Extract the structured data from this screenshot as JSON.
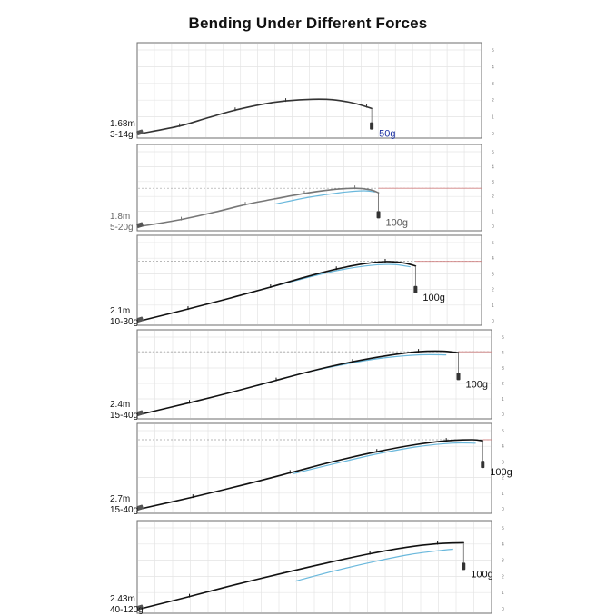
{
  "chart_data": {
    "type": "line",
    "title": "Bending Under Different Forces",
    "y_tick_labels": [
      "0",
      "1",
      "2",
      "3",
      "4",
      "5"
    ],
    "panels": [
      {
        "length": "1.68m",
        "power": "3-14g",
        "weight": "50g",
        "weight_color": "#1a2fa0",
        "label_color": "#111111",
        "rod_color": "#333333",
        "rod": [
          [
            0,
            0
          ],
          [
            2.3,
            0.45
          ],
          [
            4.0,
            0.95
          ],
          [
            5.6,
            1.4
          ],
          [
            7.2,
            1.75
          ],
          [
            8.6,
            1.95
          ],
          [
            10.2,
            2.05
          ],
          [
            11.4,
            2.02
          ],
          [
            12.5,
            1.85
          ],
          [
            13.4,
            1.6
          ],
          [
            13.7,
            1.5
          ]
        ],
        "reference": null,
        "baseline_y": null
      },
      {
        "length": "1.8m",
        "power": "5-20g",
        "weight": "100g",
        "weight_color": "#555555",
        "label_color": "#666666",
        "rod_color": "#777777",
        "rod": [
          [
            0,
            0
          ],
          [
            2.4,
            0.45
          ],
          [
            4.4,
            0.95
          ],
          [
            6.2,
            1.45
          ],
          [
            8.0,
            1.85
          ],
          [
            9.7,
            2.2
          ],
          [
            11.3,
            2.45
          ],
          [
            12.7,
            2.55
          ],
          [
            13.6,
            2.45
          ],
          [
            14.1,
            2.25
          ]
        ],
        "reference": [
          [
            8.0,
            1.5
          ],
          [
            10.0,
            1.95
          ],
          [
            11.8,
            2.25
          ],
          [
            13.2,
            2.38
          ],
          [
            13.9,
            2.3
          ]
        ],
        "baseline_y": 2.55
      },
      {
        "length": "2.1m",
        "power": "10-30g",
        "weight": "100g",
        "weight_color": "#111111",
        "label_color": "#111111",
        "rod_color": "#111111",
        "rod": [
          [
            0,
            0
          ],
          [
            2.8,
            0.75
          ],
          [
            5.3,
            1.45
          ],
          [
            7.7,
            2.15
          ],
          [
            9.8,
            2.8
          ],
          [
            11.6,
            3.3
          ],
          [
            13.1,
            3.62
          ],
          [
            14.5,
            3.78
          ],
          [
            15.6,
            3.7
          ],
          [
            16.3,
            3.5
          ]
        ],
        "reference": [
          [
            7.0,
            1.95
          ],
          [
            9.3,
            2.6
          ],
          [
            11.4,
            3.15
          ],
          [
            13.3,
            3.5
          ],
          [
            14.9,
            3.6
          ],
          [
            16.0,
            3.45
          ]
        ],
        "baseline_y": 3.8
      },
      {
        "length": "2.4m",
        "power": "15-40g",
        "weight": "100g",
        "weight_color": "#111111",
        "label_color": "#111111",
        "rod_color": "#111111",
        "rod": [
          [
            0,
            0
          ],
          [
            2.8,
            0.75
          ],
          [
            5.3,
            1.45
          ],
          [
            7.8,
            2.2
          ],
          [
            10.0,
            2.85
          ],
          [
            12.2,
            3.4
          ],
          [
            14.2,
            3.8
          ],
          [
            16.0,
            4.05
          ],
          [
            17.4,
            4.08
          ],
          [
            18.3,
            3.98
          ]
        ],
        "reference": [
          [
            6.7,
            1.85
          ],
          [
            9.3,
            2.65
          ],
          [
            11.8,
            3.25
          ],
          [
            14.0,
            3.65
          ],
          [
            16.0,
            3.85
          ],
          [
            17.6,
            3.85
          ]
        ],
        "baseline_y": 4.05
      },
      {
        "length": "2.7m",
        "power": "15-40g",
        "weight": "100g",
        "weight_color": "#111111",
        "label_color": "#111111",
        "rod_color": "#111111",
        "rod": [
          [
            0,
            0
          ],
          [
            3.0,
            0.75
          ],
          [
            5.8,
            1.5
          ],
          [
            8.6,
            2.3
          ],
          [
            11.2,
            3.05
          ],
          [
            13.6,
            3.65
          ],
          [
            15.8,
            4.1
          ],
          [
            17.6,
            4.35
          ],
          [
            19.1,
            4.42
          ],
          [
            19.7,
            4.35
          ]
        ],
        "reference": [
          [
            8.8,
            2.25
          ],
          [
            11.4,
            2.95
          ],
          [
            13.8,
            3.55
          ],
          [
            16.0,
            3.98
          ],
          [
            17.9,
            4.2
          ],
          [
            19.3,
            4.2
          ]
        ],
        "baseline_y": 4.42
      },
      {
        "length": "2.43m",
        "power": "40-120g",
        "weight": "100g",
        "weight_color": "#111111",
        "label_color": "#111111",
        "rod_color": "#111111",
        "rod": [
          [
            0,
            0
          ],
          [
            2.8,
            0.75
          ],
          [
            5.5,
            1.5
          ],
          [
            8.2,
            2.2
          ],
          [
            10.8,
            2.85
          ],
          [
            13.2,
            3.4
          ],
          [
            15.3,
            3.8
          ],
          [
            17.1,
            4.02
          ],
          [
            18.6,
            4.08
          ]
        ],
        "reference": [
          [
            8.9,
            1.7
          ],
          [
            11.2,
            2.35
          ],
          [
            13.4,
            2.9
          ],
          [
            15.5,
            3.35
          ],
          [
            17.4,
            3.62
          ],
          [
            18.0,
            3.68
          ]
        ],
        "baseline_y": null
      }
    ]
  }
}
